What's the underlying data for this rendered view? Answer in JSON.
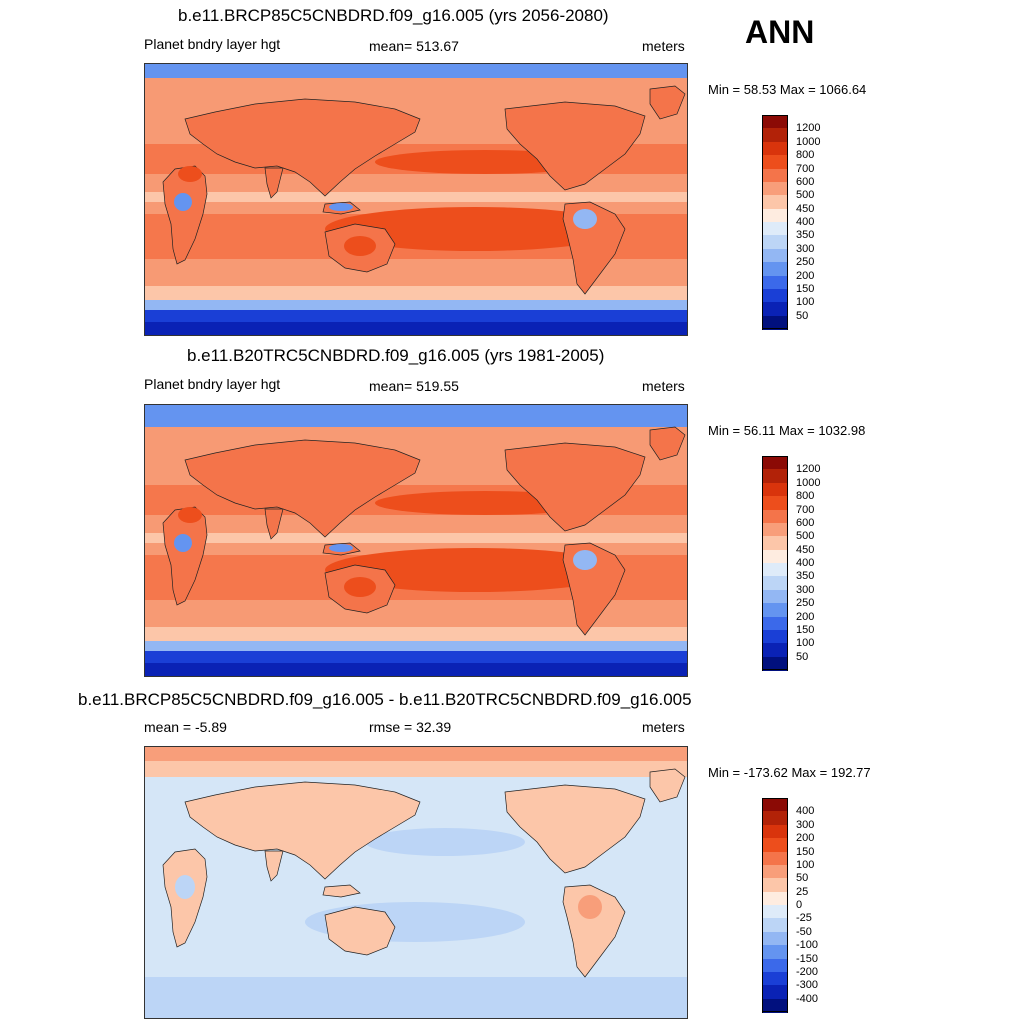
{
  "season": "ANN",
  "panels": [
    {
      "id": "future",
      "title": "b.e11.BRCP85C5CNBDRD.f09_g16.005 (yrs 2056-2080)",
      "left_label": "Planet bndry layer hgt",
      "center_label": "mean= 513.67",
      "units": "meters",
      "minmax": "Min =  58.53 Max = 1066.64",
      "scale": "abs",
      "levels": [
        "1200",
        "1000",
        "800",
        "700",
        "600",
        "500",
        "450",
        "400",
        "350",
        "300",
        "250",
        "200",
        "150",
        "100",
        "50"
      ]
    },
    {
      "id": "historical",
      "title": "b.e11.B20TRC5CNBDRD.f09_g16.005 (yrs 1981-2005)",
      "left_label": "Planet bndry layer hgt",
      "center_label": "mean= 519.55",
      "units": "meters",
      "minmax": "Min =  56.11 Max = 1032.98",
      "scale": "abs",
      "levels": [
        "1200",
        "1000",
        "800",
        "700",
        "600",
        "500",
        "450",
        "400",
        "350",
        "300",
        "250",
        "200",
        "150",
        "100",
        "50"
      ]
    },
    {
      "id": "difference",
      "title": "b.e11.BRCP85C5CNBDRD.f09_g16.005 - b.e11.B20TRC5CNBDRD.f09_g16.005",
      "left_label": "mean =  -5.89",
      "center_label": "rmse =  32.39",
      "units": "meters",
      "minmax": "Min = -173.62 Max = 192.77",
      "scale": "diff",
      "levels": [
        "400",
        "300",
        "200",
        "150",
        "100",
        "50",
        "25",
        "0",
        "-25",
        "-50",
        "-100",
        "-150",
        "-200",
        "-300",
        "-400"
      ]
    }
  ],
  "colors": {
    "palette_top_to_bottom": [
      "#8b0a05",
      "#b22208",
      "#d9340c",
      "#ed4e1c",
      "#f4744a",
      "#f89e7a",
      "#fcc6a9",
      "#feece0",
      "#deebf9",
      "#bcd5f6",
      "#93b7f3",
      "#6494f0",
      "#3b69ea",
      "#1a3fd6",
      "#0a22b5",
      "#01107e"
    ],
    "ocean_ne": "#f79a74",
    "ocean_high": "#f5774c",
    "tropical_high": "#f4744a",
    "subtropical_core": "#ed4e1c",
    "polar_low": "#1a3fd6",
    "ice": "#0a22b5",
    "diff_base": "#d5e6f7",
    "diff_pos": "#fcc6a9",
    "diff_pos_strong": "#f89e7a",
    "diff_neg": "#bcd5f6",
    "diff_neg_strong": "#6494f0"
  }
}
